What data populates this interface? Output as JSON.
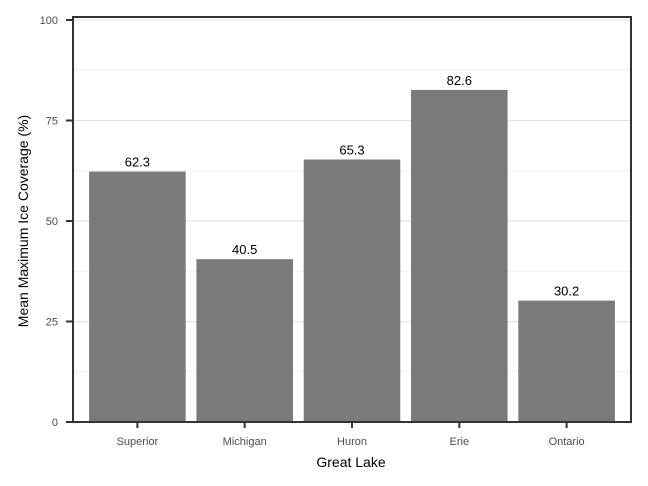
{
  "chart_data": {
    "type": "bar",
    "xlabel": "Great Lake",
    "ylabel": "Mean Maximum Ice Coverage (%)",
    "categories": [
      "Superior",
      "Michigan",
      "Huron",
      "Erie",
      "Ontario"
    ],
    "values": [
      62.3,
      40.5,
      65.3,
      82.6,
      30.2
    ],
    "value_labels": [
      "62.3",
      "40.5",
      "65.3",
      "82.6",
      "30.2"
    ],
    "ylim": [
      0,
      100
    ],
    "yticks": [
      0,
      25,
      50,
      75,
      100
    ],
    "ytick_labels": [
      "0",
      "25",
      "50",
      "75",
      "100"
    ],
    "grid": true,
    "colors": {
      "bar": "#7a7a7a",
      "grid_major": "#e3e3e3",
      "grid_minor": "#f0f0f0",
      "axis": "#333333"
    }
  }
}
